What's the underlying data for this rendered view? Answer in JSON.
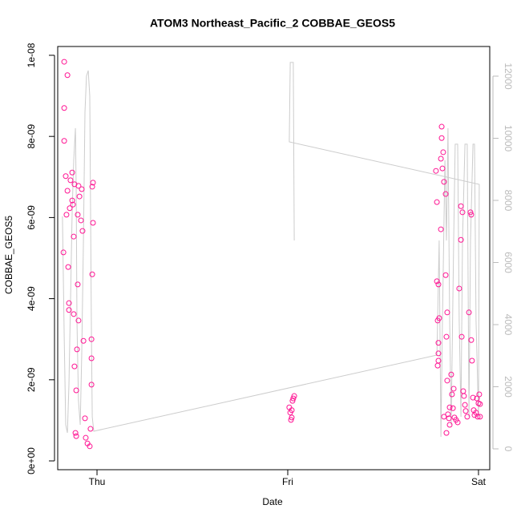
{
  "chart_data": {
    "type": "scatter",
    "title": "ATOM3 Northeast_Pacific_2 COBBAE_GEOS5",
    "x_label": "Date",
    "y_label": "COBBAE_GEOS5",
    "xlim": [
      -0.206,
      2.059
    ],
    "xticks": [
      {
        "value": 0,
        "label": "Thu"
      },
      {
        "value": 1,
        "label": "Fri"
      },
      {
        "value": 2,
        "label": "Sat"
      }
    ],
    "ylim": [
      -2.17e-10,
      1.0217e-08
    ],
    "yticks": [
      {
        "value": 0,
        "label": "0e+00"
      },
      {
        "value": 2e-09,
        "label": "2e-09"
      },
      {
        "value": 4e-09,
        "label": "4e-09"
      },
      {
        "value": 6e-09,
        "label": "6e-09"
      },
      {
        "value": 8e-09,
        "label": "8e-09"
      },
      {
        "value": 1e-08,
        "label": "1e-08"
      }
    ],
    "y2lim": [
      -671,
      12955
    ],
    "y2ticks": [
      0,
      2000,
      4000,
      6000,
      8000,
      10000,
      12000
    ],
    "series": [
      {
        "mark": "points",
        "color": "#ff1493",
        "x": [
          -0.172,
          -0.155,
          -0.172,
          -0.172,
          -0.164,
          -0.155,
          -0.16,
          -0.176,
          -0.151,
          -0.147,
          -0.147,
          -0.122,
          -0.118,
          -0.109,
          -0.105,
          -0.097,
          -0.101,
          -0.101,
          -0.122,
          -0.143,
          -0.139,
          -0.13,
          -0.118,
          -0.097,
          -0.092,
          -0.08,
          -0.084,
          -0.076,
          -0.071,
          -0.063,
          -0.059,
          -0.05,
          -0.038,
          -0.034,
          -0.029,
          -0.029,
          -0.029,
          -0.025,
          -0.021,
          -0.021,
          -0.025,
          -0.113,
          -0.109,
          -0.13,
          -0.126,
          1.008,
          1.013,
          1.017,
          1.021,
          1.029,
          1.034,
          1.025,
          1.021,
          1.782,
          1.777,
          1.782,
          1.79,
          1.786,
          1.794,
          1.79,
          1.79,
          1.79,
          1.786,
          1.803,
          1.803,
          1.807,
          1.807,
          1.811,
          1.815,
          1.819,
          1.828,
          1.828,
          1.832,
          1.836,
          1.836,
          1.84,
          1.845,
          1.849,
          1.857,
          1.861,
          1.866,
          1.87,
          1.874,
          1.882,
          1.891,
          1.899,
          1.908,
          1.908,
          1.916,
          1.912,
          1.92,
          1.924,
          1.929,
          1.933,
          1.941,
          1.95,
          1.958,
          1.962,
          1.962,
          1.966,
          1.971,
          1.975,
          1.979,
          1.987,
          1.992,
          1.996,
          2.0,
          2.004,
          2.008,
          2.008,
          1.819,
          1.832,
          1.849
        ],
        "values": [
          9.84e-09,
          9.51e-09,
          8.7e-09,
          7.89e-09,
          7.02e-09,
          6.66e-09,
          6.07e-09,
          5.14e-09,
          4.78e-09,
          3.89e-09,
          3.72e-09,
          3.62e-09,
          2.33e-09,
          1.74e-09,
          2.75e-09,
          3.46e-09,
          4.35e-09,
          6.07e-09,
          5.53e-09,
          6.23e-09,
          6.92e-09,
          7.11e-09,
          6.82e-09,
          6.78e-09,
          6.52e-09,
          6.7e-09,
          5.93e-09,
          5.67e-09,
          2.96e-09,
          1.05e-09,
          5.7e-10,
          4.3e-10,
          3.6e-10,
          7.9e-10,
          1.88e-09,
          2.53e-09,
          3e-09,
          4.6e-09,
          5.87e-09,
          6.86e-09,
          6.76e-09,
          6.9e-10,
          6.1e-10,
          6.42e-09,
          6.32e-09,
          1.32e-09,
          1.19e-09,
          1.01e-09,
          1.07e-09,
          1.54e-09,
          1.6e-09,
          1.48e-09,
          1.25e-09,
          6.38e-09,
          7.15e-09,
          4.43e-09,
          4.35e-09,
          3.46e-09,
          3.52e-09,
          2.91e-09,
          2.65e-09,
          2.47e-09,
          2.35e-09,
          5.71e-09,
          7.45e-09,
          8.24e-09,
          7.96e-09,
          7.21e-09,
          7.61e-09,
          6.88e-09,
          6.58e-09,
          4.58e-09,
          3.06e-09,
          3.66e-09,
          1.98e-09,
          1.15e-09,
          1.05e-09,
          8.9e-10,
          2.13e-09,
          1.64e-09,
          1.3e-09,
          1.78e-09,
          1.07e-09,
          1.01e-09,
          9.5e-10,
          4.25e-09,
          5.45e-09,
          6.28e-09,
          6.13e-09,
          3.06e-09,
          1.72e-09,
          1.6e-09,
          1.38e-09,
          1.23e-09,
          1.09e-09,
          3.66e-09,
          6.13e-09,
          6.07e-09,
          2.98e-09,
          2.47e-09,
          1.56e-09,
          1.25e-09,
          1.13e-09,
          1.19e-09,
          1.54e-09,
          1.09e-09,
          1.42e-09,
          1.64e-09,
          1.09e-09,
          1.4e-09,
          1.09e-09,
          6.9e-10,
          1.32e-09
        ]
      },
      {
        "mark": "line",
        "axis": "y2",
        "color": "#cccccc",
        "x": [
          -0.181,
          -0.172,
          -0.164,
          -0.155,
          -0.147,
          -0.139,
          -0.13,
          -0.122,
          -0.113,
          -0.109,
          -0.105,
          -0.097,
          -0.088,
          -0.08,
          -0.071,
          -0.063,
          -0.055,
          -0.046,
          -0.038,
          -0.034,
          -0.029,
          -0.025,
          -0.017,
          1.782,
          1.794,
          1.803,
          1.811,
          1.824,
          1.832,
          1.84,
          1.849,
          1.857,
          1.87,
          1.878,
          1.891,
          1.899,
          1.908,
          1.916,
          1.929,
          1.941,
          1.95,
          1.958,
          1.971,
          1.979,
          1.987,
          2.0,
          2.004,
          1.008,
          1.013,
          1.029,
          1.034
        ],
        "values": [
          7485,
          3613,
          774,
          516,
          2065,
          4646,
          7743,
          9292,
          10324,
          8259,
          4130,
          1549,
          774,
          3097,
          6711,
          10840,
          12002,
          12182,
          11356,
          8001,
          3613,
          1032,
          568,
          3020,
          6711,
          387,
          4130,
          9292,
          6711,
          10324,
          4130,
          774,
          6711,
          9808,
          9808,
          4130,
          1032,
          6711,
          9808,
          9808,
          1032,
          6711,
          9808,
          9808,
          4130,
          1032,
          8517,
          9885,
          12441,
          12441,
          6711
        ]
      }
    ]
  }
}
